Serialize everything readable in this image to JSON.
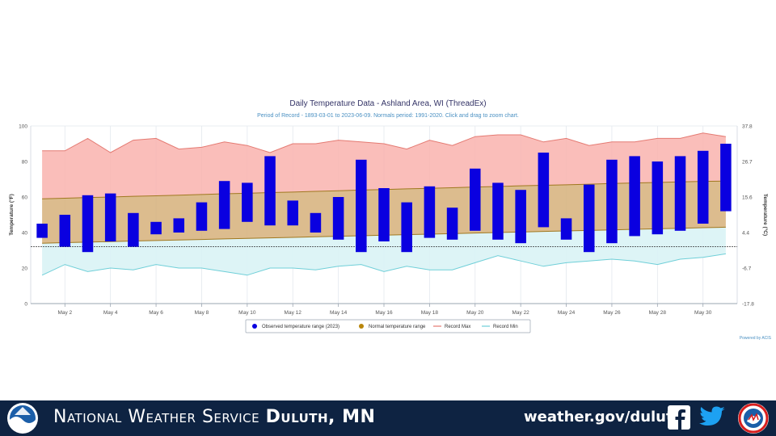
{
  "chart_data": {
    "type": "bar",
    "title": "Daily Temperature Data - Ashland Area, WI (ThreadEx)",
    "subtitle": "Period of Record - 1893-03-01 to 2023-06-09. Normals period: 1991-2020. Click and drag to zoom chart.",
    "ylabel_left": "Temperature (°F)",
    "ylabel_right": "Temperature (°C)",
    "ylim": [
      0,
      100
    ],
    "y_ticks_left": [
      "0",
      "20",
      "40",
      "60",
      "80",
      "100"
    ],
    "y_ticks_right": [
      "-17.8",
      "-6.7",
      "4.4",
      "15.6",
      "26.7",
      "37.8"
    ],
    "x_ticks": [
      "May 2",
      "May 4",
      "May 6",
      "May 8",
      "May 10",
      "May 12",
      "May 14",
      "May 16",
      "May 18",
      "May 20",
      "May 22",
      "May 24",
      "May 26",
      "May 28",
      "May 30"
    ],
    "days": [
      1,
      2,
      3,
      4,
      5,
      6,
      7,
      8,
      9,
      10,
      11,
      12,
      13,
      14,
      15,
      16,
      17,
      18,
      19,
      20,
      21,
      22,
      23,
      24,
      25,
      26,
      27,
      28,
      29,
      30,
      31
    ],
    "reference_line_value": 32,
    "grid": "vertical",
    "series": [
      {
        "name": "Observed temperature range (2023)",
        "color": "#0a00e0",
        "high": [
          45,
          50,
          61,
          62,
          51,
          46,
          48,
          57,
          69,
          68,
          83,
          58,
          51,
          60,
          81,
          65,
          57,
          66,
          54,
          76,
          68,
          64,
          85,
          48,
          67,
          81,
          83,
          80,
          83,
          86,
          90
        ],
        "low": [
          37,
          32,
          29,
          35,
          32,
          39,
          40,
          41,
          42,
          46,
          44,
          44,
          40,
          36,
          29,
          35,
          29,
          37,
          36,
          41,
          36,
          34,
          43,
          36,
          29,
          34,
          38,
          39,
          41,
          45,
          52
        ]
      },
      {
        "name": "Normal temperature range",
        "color": "#b9860b",
        "high": [
          59,
          59.3,
          59.7,
          60,
          60.4,
          60.7,
          61,
          61.4,
          61.8,
          62.1,
          62.5,
          62.8,
          63.2,
          63.5,
          63.9,
          64.2,
          64.6,
          64.9,
          65.2,
          65.6,
          65.9,
          66.3,
          66.6,
          66.9,
          67.2,
          67.6,
          67.9,
          68.2,
          68.5,
          68.8,
          69
        ],
        "low": [
          34,
          34.3,
          34.6,
          34.9,
          35.2,
          35.5,
          35.8,
          36.1,
          36.4,
          36.7,
          37,
          37.3,
          37.6,
          37.9,
          38.2,
          38.5,
          38.8,
          39.1,
          39.4,
          39.7,
          40,
          40.3,
          40.6,
          40.9,
          41.2,
          41.5,
          41.8,
          42.1,
          42.4,
          42.7,
          43
        ]
      },
      {
        "name": "Record Max",
        "color": "#e47a72",
        "values": [
          86,
          86,
          93,
          85,
          92,
          93,
          87,
          88,
          91,
          89,
          85,
          90,
          90,
          92,
          91,
          90,
          87,
          92,
          89,
          94,
          95,
          95,
          91,
          93,
          89,
          91,
          91,
          93,
          93,
          96,
          94
        ]
      },
      {
        "name": "Record Min",
        "color": "#6fcfd8",
        "values": [
          16,
          22,
          18,
          20,
          19,
          22,
          20,
          20,
          18,
          16,
          20,
          20,
          19,
          21,
          22,
          18,
          21,
          19,
          19,
          23,
          27,
          24,
          21,
          23,
          24,
          25,
          24,
          22,
          25,
          26,
          28
        ]
      }
    ],
    "legend_position": "bottom-center",
    "credit": "Powered by ACIS"
  },
  "footer": {
    "agency_prefix": "National Weather Service",
    "office": "Duluth, MN",
    "website": "weather.gov/duluth",
    "noaa_icon": "noaa-logo-icon",
    "facebook_icon": "facebook-icon",
    "twitter_icon": "twitter-icon",
    "nws_icon": "nws-logo-icon",
    "colors": {
      "background": "#0e2342",
      "text": "#ffffff"
    }
  }
}
